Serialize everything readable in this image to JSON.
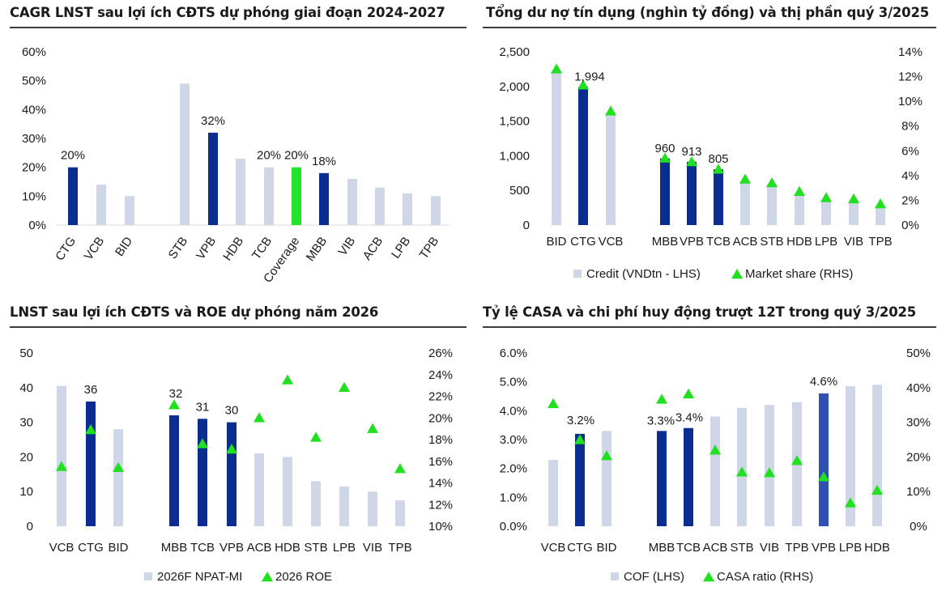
{
  "colors": {
    "light": "#cfd6e8",
    "dark": "#0b2d8f",
    "mid": "#2f51b3",
    "green": "#22e52b",
    "triangle": "#20e020"
  },
  "chart_data": [
    {
      "type": "bar",
      "title": "CAGR LNST sau lợi ích CĐTS dự phóng giai đoạn 2024-2027",
      "categories": [
        "CTG",
        "VCB",
        "BID",
        "STB",
        "VPB",
        "HDB",
        "TCB",
        "Coverage",
        "MBB",
        "VIB",
        "ACB",
        "LPB",
        "TPB"
      ],
      "values": [
        20,
        14,
        10,
        49,
        32,
        23,
        20,
        20,
        18,
        16,
        13,
        11,
        10
      ],
      "styles": [
        "dark",
        "light",
        "light",
        "light",
        "dark",
        "light",
        "light",
        "green",
        "dark",
        "light",
        "light",
        "light",
        "light"
      ],
      "data_labels": [
        "20%",
        "",
        "",
        "",
        "32%",
        "",
        "20%",
        "20%",
        "18%",
        "",
        "",
        "",
        ""
      ],
      "y_ticks": [
        "0%",
        "10%",
        "20%",
        "30%",
        "40%",
        "50%",
        "60%"
      ],
      "ylim": [
        0,
        60
      ]
    },
    {
      "type": "bar",
      "title": "Tổng dư nợ tín dụng (nghìn tỷ đồng) và thị phần quý 3/2025",
      "categories": [
        "BID",
        "CTG",
        "VCB",
        "MBB",
        "VPB",
        "TCB",
        "ACB",
        "STB",
        "HDB",
        "LPB",
        "VIB",
        "TPB"
      ],
      "series": [
        {
          "name": "Credit (VNDtn - LHS)",
          "type": "bar",
          "values": [
            2220,
            1994,
            1620,
            960,
            913,
            805,
            630,
            590,
            450,
            370,
            350,
            270
          ]
        },
        {
          "name": "Market share (RHS)",
          "type": "marker",
          "values": [
            12.6,
            11.3,
            9.2,
            5.4,
            5.1,
            4.5,
            3.7,
            3.4,
            2.7,
            2.2,
            2.1,
            1.7
          ]
        }
      ],
      "styles": [
        "light",
        "dark",
        "light",
        "dark",
        "dark",
        "dark",
        "light",
        "light",
        "light",
        "light",
        "light",
        "light"
      ],
      "data_labels": [
        "",
        "1,994",
        "",
        "960",
        "913",
        "805",
        "",
        "",
        "",
        "",
        "",
        ""
      ],
      "y_ticks": [
        "0",
        "500",
        "1,000",
        "1,500",
        "2,000",
        "2,500"
      ],
      "y2_ticks": [
        "0%",
        "2%",
        "4%",
        "6%",
        "8%",
        "10%",
        "12%",
        "14%"
      ],
      "ylim": [
        0,
        2500
      ],
      "y2lim": [
        0,
        14
      ],
      "legend": [
        "Credit (VNDtn - LHS)",
        "Market share (RHS)"
      ]
    },
    {
      "type": "bar",
      "title": "LNST sau lợi ích CĐTS và ROE dự phóng năm 2026",
      "categories": [
        "VCB",
        "CTG",
        "BID",
        "MBB",
        "TCB",
        "VPB",
        "ACB",
        "HDB",
        "STB",
        "LPB",
        "VIB",
        "TPB"
      ],
      "series": [
        {
          "name": "2026F NPAT-MI",
          "type": "bar",
          "values": [
            40.5,
            36,
            28,
            32,
            31,
            30,
            21,
            20,
            13,
            11.5,
            10,
            7.5
          ]
        },
        {
          "name": "2026 ROE",
          "type": "marker",
          "values": [
            15.5,
            18.9,
            15.4,
            21.2,
            17.6,
            17.1,
            20.0,
            23.5,
            18.2,
            22.8,
            19.0,
            15.3
          ]
        }
      ],
      "styles": [
        "light",
        "dark",
        "light",
        "dark",
        "dark",
        "dark",
        "light",
        "light",
        "light",
        "light",
        "light",
        "light"
      ],
      "data_labels": [
        "",
        "36",
        "",
        "32",
        "31",
        "30",
        "",
        "",
        "",
        "",
        "",
        ""
      ],
      "y_ticks": [
        "0",
        "10",
        "20",
        "30",
        "40",
        "50"
      ],
      "y2_ticks": [
        "10%",
        "12%",
        "14%",
        "16%",
        "18%",
        "20%",
        "22%",
        "24%",
        "26%"
      ],
      "ylim": [
        0,
        50
      ],
      "y2lim": [
        10,
        26
      ],
      "legend": [
        "2026F NPAT-MI",
        "2026 ROE"
      ]
    },
    {
      "type": "bar",
      "title": "Tỷ lệ CASA và chi phí huy động trượt 12T trong quý 3/2025",
      "categories": [
        "VCB",
        "CTG",
        "BID",
        "MBB",
        "TCB",
        "ACB",
        "STB",
        "VIB",
        "TPB",
        "VPB",
        "LPB",
        "HDB"
      ],
      "series": [
        {
          "name": "COF (LHS)",
          "type": "bar",
          "values": [
            2.3,
            3.2,
            3.3,
            3.3,
            3.4,
            3.8,
            4.1,
            4.2,
            4.3,
            4.6,
            4.85,
            4.9
          ]
        },
        {
          "name": "CASA ratio (RHS)",
          "type": "marker",
          "values": [
            35.3,
            24.9,
            20.3,
            36.6,
            38.1,
            21.9,
            15.6,
            15.4,
            18.9,
            14.2,
            6.7,
            10.3
          ]
        }
      ],
      "styles": [
        "light",
        "dark",
        "light",
        "dark",
        "dark",
        "light",
        "light",
        "light",
        "light",
        "mid",
        "light",
        "light"
      ],
      "data_labels": [
        "",
        "3.2%",
        "",
        "3.3%",
        "3.4%",
        "",
        "",
        "",
        "",
        "4.6%",
        "",
        ""
      ],
      "y_ticks": [
        "0.0%",
        "1.0%",
        "2.0%",
        "3.0%",
        "4.0%",
        "5.0%",
        "6.0%"
      ],
      "y2_ticks": [
        "0%",
        "10%",
        "20%",
        "30%",
        "40%",
        "50%"
      ],
      "ylim": [
        0,
        6
      ],
      "y2lim": [
        0,
        50
      ],
      "legend": [
        "COF (LHS)",
        "CASA ratio (RHS)"
      ]
    }
  ]
}
